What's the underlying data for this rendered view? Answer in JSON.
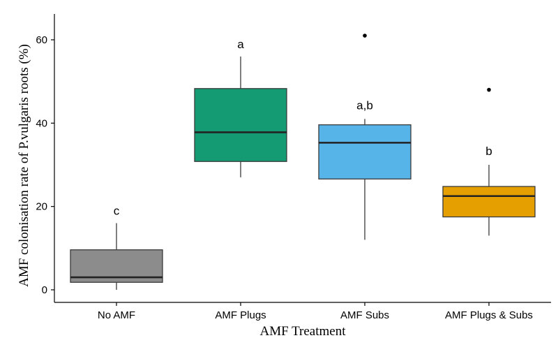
{
  "chart_data": {
    "type": "box",
    "xlabel": "AMF Treatment",
    "ylabel": "AMF colonisation rate of P.vulgaris roots (%)",
    "ylim": [
      -2,
      64
    ],
    "yticks": [
      0,
      20,
      40,
      60
    ],
    "grid": false,
    "legend": "none",
    "categories": [
      {
        "name": "No AMF",
        "color": "#8c8c8c",
        "min": 0,
        "q1": 1.8,
        "median": 3.0,
        "q3": 9.6,
        "max": 16,
        "outliers": [],
        "sig": "c"
      },
      {
        "name": "AMF Plugs",
        "color": "#149b74",
        "min": 27,
        "q1": 30.8,
        "median": 37.8,
        "q3": 48.3,
        "max": 56,
        "outliers": [],
        "sig": "a"
      },
      {
        "name": "AMF Subs",
        "color": "#56b4e9",
        "min": 12,
        "q1": 26.6,
        "median": 35.3,
        "q3": 39.6,
        "max": 41,
        "outliers": [
          61
        ],
        "sig": "a,b"
      },
      {
        "name": "AMF Plugs & Subs",
        "color": "#e69f00",
        "min": 13,
        "q1": 17.5,
        "median": 22.5,
        "q3": 24.8,
        "max": 30,
        "outliers": [
          48
        ],
        "sig": "b"
      }
    ]
  }
}
